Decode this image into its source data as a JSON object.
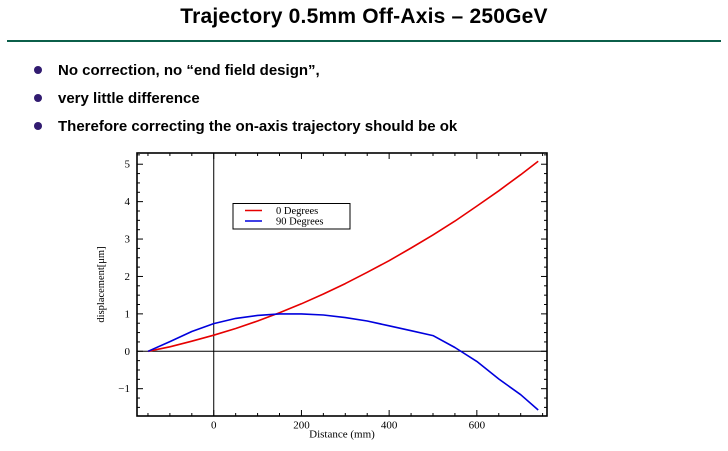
{
  "slide": {
    "title": "Trajectory 0.5mm Off-Axis – 250GeV",
    "bullets": [
      "No correction, no “end field design”,",
      "very little difference",
      "Therefore correcting the on-axis trajectory should be ok"
    ],
    "bullet_color": "#311b70",
    "rule_color": "#0b5f4a"
  },
  "chart_data": {
    "type": "line",
    "title": "",
    "xlabel": "Distance (mm)",
    "ylabel": "displacement[μm]",
    "xlim": [
      -175,
      760
    ],
    "ylim": [
      -1.73,
      5.3
    ],
    "x_major_ticks": [
      0,
      200,
      400,
      600
    ],
    "x_minor_step": 50,
    "y_major_ticks": [
      -1,
      0,
      1,
      2,
      3,
      4,
      5
    ],
    "y_minor_step": 0.25,
    "grid": false,
    "zero_lines": true,
    "frame": true,
    "legend_position": "upper-left-inside",
    "series": [
      {
        "name": "0 Degrees",
        "color": "#e60000",
        "points": [
          [
            -150,
            0
          ],
          [
            -100,
            0.12
          ],
          [
            -50,
            0.27
          ],
          [
            0,
            0.43
          ],
          [
            50,
            0.61
          ],
          [
            100,
            0.81
          ],
          [
            150,
            1.03
          ],
          [
            200,
            1.27
          ],
          [
            250,
            1.53
          ],
          [
            300,
            1.81
          ],
          [
            350,
            2.11
          ],
          [
            400,
            2.42
          ],
          [
            450,
            2.76
          ],
          [
            500,
            3.11
          ],
          [
            550,
            3.48
          ],
          [
            600,
            3.88
          ],
          [
            650,
            4.29
          ],
          [
            700,
            4.72
          ],
          [
            740,
            5.08
          ]
        ]
      },
      {
        "name": "90 Degrees",
        "color": "#0000dd",
        "points": [
          [
            -150,
            0
          ],
          [
            -100,
            0.26
          ],
          [
            -50,
            0.53
          ],
          [
            0,
            0.74
          ],
          [
            50,
            0.88
          ],
          [
            100,
            0.96
          ],
          [
            150,
            1.0
          ],
          [
            200,
            1.0
          ],
          [
            250,
            0.97
          ],
          [
            300,
            0.9
          ],
          [
            350,
            0.81
          ],
          [
            400,
            0.68
          ],
          [
            450,
            0.55
          ],
          [
            500,
            0.42
          ],
          [
            550,
            0.1
          ],
          [
            600,
            -0.27
          ],
          [
            650,
            -0.74
          ],
          [
            700,
            -1.16
          ],
          [
            740,
            -1.57
          ]
        ]
      }
    ]
  }
}
